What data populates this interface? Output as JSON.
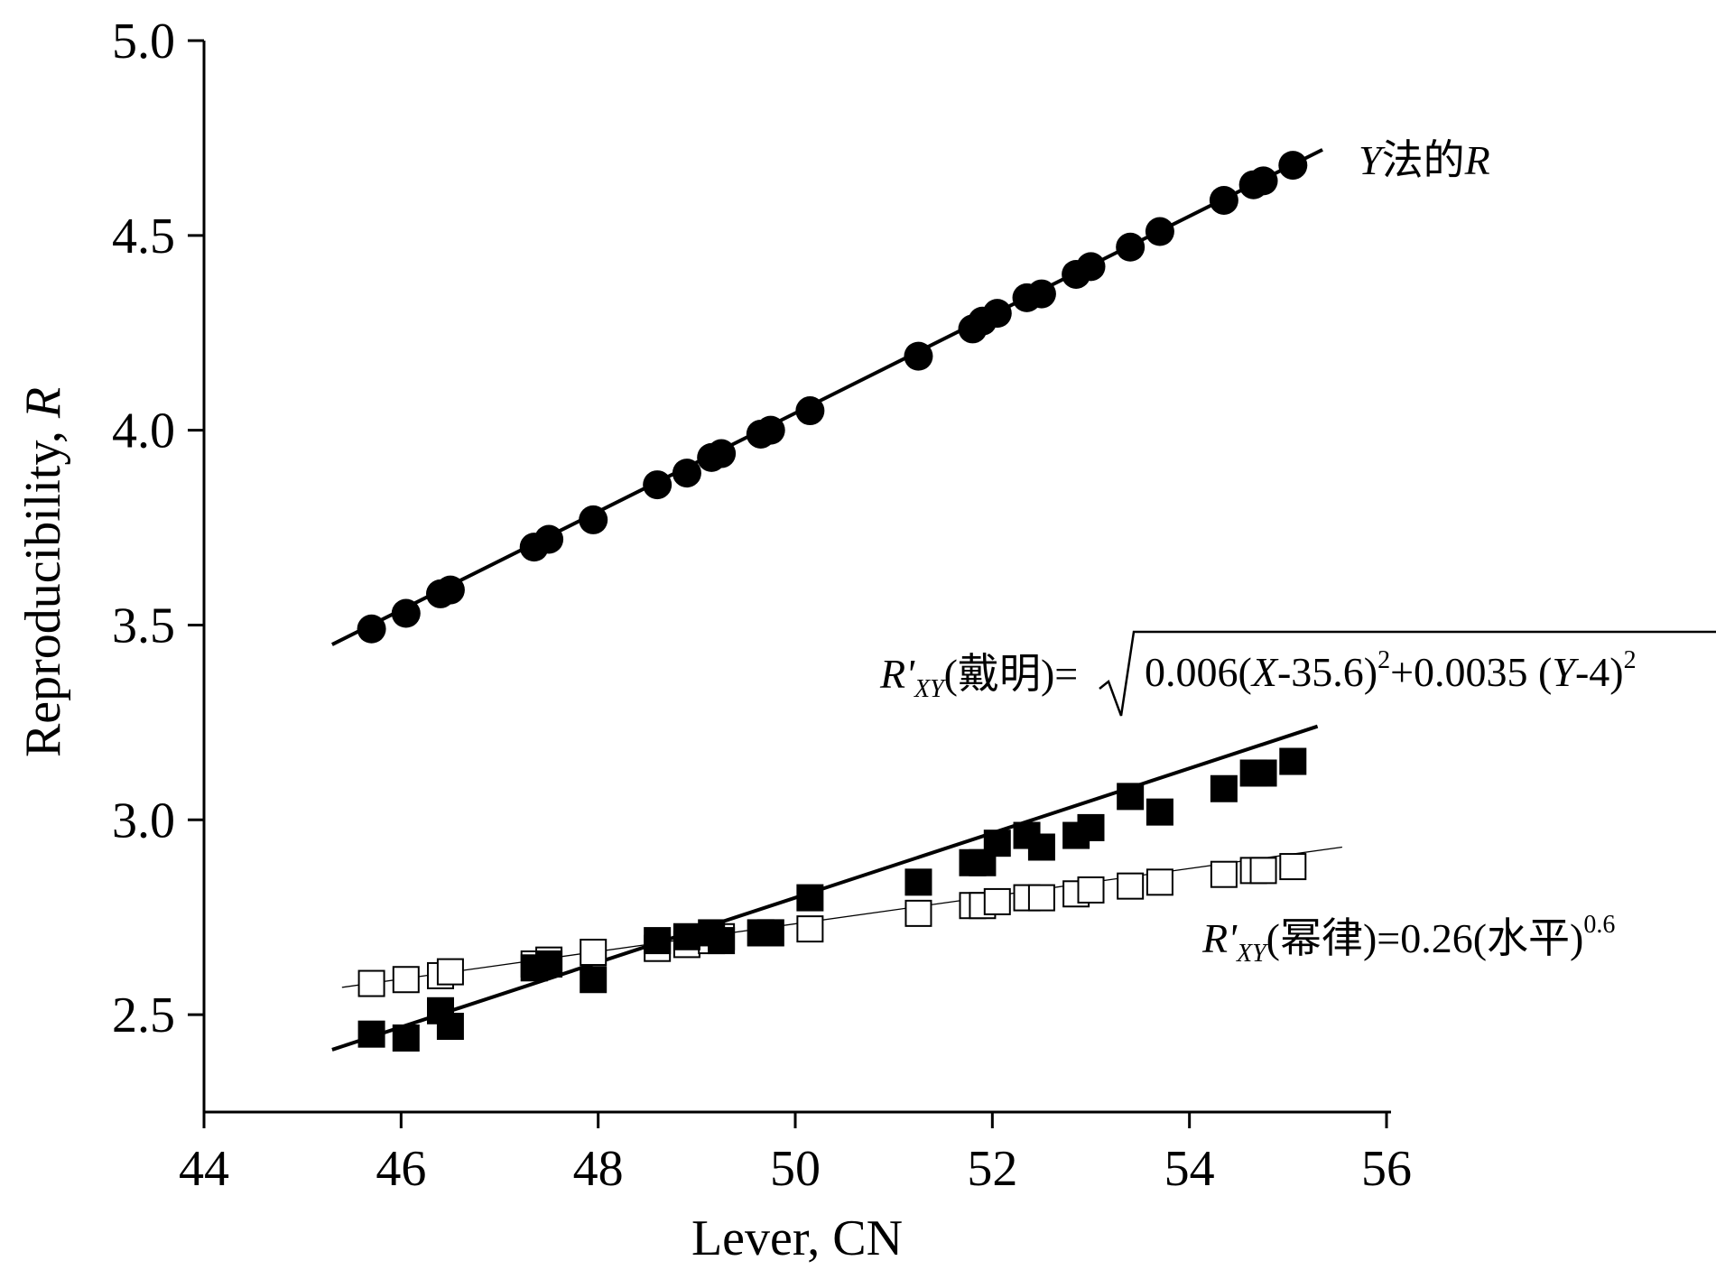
{
  "chart_data": {
    "type": "scatter",
    "xlabel": "Lever, CN",
    "ylabel_prefix": "Reproducibility, ",
    "ylabel_var": "R",
    "xlim": [
      44,
      56
    ],
    "ylim": [
      2.25,
      5.0
    ],
    "x_ticks": [
      44,
      46,
      48,
      50,
      52,
      54,
      56
    ],
    "y_ticks": [
      2.5,
      3.0,
      3.5,
      4.0,
      4.5,
      5.0
    ],
    "x_tick_labels": [
      "44",
      "46",
      "48",
      "50",
      "52",
      "54",
      "56"
    ],
    "y_tick_labels": [
      "2.5",
      "3.0",
      "3.5",
      "4.0",
      "4.5",
      "5.0"
    ],
    "grid": false,
    "series": [
      {
        "marker": "filled-circle",
        "color": "#000000",
        "points": [
          [
            45.7,
            3.49
          ],
          [
            46.05,
            3.53
          ],
          [
            46.4,
            3.58
          ],
          [
            46.5,
            3.59
          ],
          [
            47.35,
            3.7
          ],
          [
            47.5,
            3.72
          ],
          [
            47.95,
            3.77
          ],
          [
            48.6,
            3.86
          ],
          [
            48.9,
            3.89
          ],
          [
            49.15,
            3.93
          ],
          [
            49.25,
            3.94
          ],
          [
            49.65,
            3.99
          ],
          [
            49.75,
            4.0
          ],
          [
            50.15,
            4.05
          ],
          [
            51.25,
            4.19
          ],
          [
            51.8,
            4.26
          ],
          [
            51.9,
            4.28
          ],
          [
            52.05,
            4.3
          ],
          [
            52.35,
            4.34
          ],
          [
            52.5,
            4.35
          ],
          [
            52.85,
            4.4
          ],
          [
            53.0,
            4.42
          ],
          [
            53.4,
            4.47
          ],
          [
            53.7,
            4.51
          ],
          [
            54.35,
            4.59
          ],
          [
            54.65,
            4.63
          ],
          [
            54.75,
            4.64
          ],
          [
            55.05,
            4.68
          ]
        ],
        "fit_line": [
          [
            45.3,
            3.45
          ],
          [
            55.35,
            4.72
          ]
        ],
        "fit_width": 4
      },
      {
        "marker": "filled-square",
        "color": "#000000",
        "points": [
          [
            45.7,
            2.45
          ],
          [
            46.05,
            2.44
          ],
          [
            46.4,
            2.51
          ],
          [
            46.5,
            2.47
          ],
          [
            47.35,
            2.62
          ],
          [
            47.5,
            2.63
          ],
          [
            47.95,
            2.59
          ],
          [
            48.6,
            2.69
          ],
          [
            48.9,
            2.7
          ],
          [
            49.15,
            2.71
          ],
          [
            49.25,
            2.69
          ],
          [
            49.65,
            2.71
          ],
          [
            49.75,
            2.71
          ],
          [
            50.15,
            2.8
          ],
          [
            51.25,
            2.84
          ],
          [
            51.8,
            2.89
          ],
          [
            51.9,
            2.89
          ],
          [
            52.05,
            2.94
          ],
          [
            52.35,
            2.96
          ],
          [
            52.5,
            2.93
          ],
          [
            52.85,
            2.96
          ],
          [
            53.0,
            2.98
          ],
          [
            53.4,
            3.06
          ],
          [
            53.7,
            3.02
          ],
          [
            54.35,
            3.08
          ],
          [
            54.65,
            3.12
          ],
          [
            54.75,
            3.12
          ],
          [
            55.05,
            3.15
          ]
        ],
        "fit_line": [
          [
            45.3,
            2.41
          ],
          [
            55.3,
            3.24
          ]
        ],
        "fit_width": 4
      },
      {
        "marker": "open-square",
        "color": "#000000",
        "points": [
          [
            45.7,
            2.58
          ],
          [
            46.05,
            2.59
          ],
          [
            46.4,
            2.6
          ],
          [
            46.5,
            2.61
          ],
          [
            47.35,
            2.63
          ],
          [
            47.5,
            2.64
          ],
          [
            47.95,
            2.66
          ],
          [
            48.6,
            2.67
          ],
          [
            48.9,
            2.68
          ],
          [
            49.15,
            2.69
          ],
          [
            49.25,
            2.7
          ],
          [
            49.65,
            2.71
          ],
          [
            49.75,
            2.71
          ],
          [
            50.15,
            2.72
          ],
          [
            51.25,
            2.76
          ],
          [
            51.8,
            2.78
          ],
          [
            51.9,
            2.78
          ],
          [
            52.05,
            2.79
          ],
          [
            52.35,
            2.8
          ],
          [
            52.5,
            2.8
          ],
          [
            52.85,
            2.81
          ],
          [
            53.0,
            2.82
          ],
          [
            53.4,
            2.83
          ],
          [
            53.7,
            2.84
          ],
          [
            54.35,
            2.86
          ],
          [
            54.65,
            2.87
          ],
          [
            54.75,
            2.87
          ],
          [
            55.05,
            2.88
          ]
        ],
        "fit_line": [
          [
            45.4,
            2.57
          ],
          [
            55.55,
            2.93
          ]
        ],
        "fit_width": 1.3
      }
    ],
    "annotations": {
      "top": {
        "var": "Y",
        "text": "法的",
        "var2": "R"
      },
      "middle": {
        "lhs_var": "R'",
        "lhs_sub": "XY",
        "lhs_text": "(戴明)=",
        "radicand_a": "0.006(",
        "radicand_x": "X",
        "radicand_b": "-35.6)",
        "radicand_exp1": "2",
        "radicand_c": "+0.0035 (",
        "radicand_y": "Y",
        "radicand_d": "-4)",
        "radicand_exp2": "2"
      },
      "bottom": {
        "lhs_var": "R'",
        "lhs_sub": "XY",
        "lhs_text": "(幂律)=0.26(水平)",
        "exp": "0.6"
      }
    }
  }
}
